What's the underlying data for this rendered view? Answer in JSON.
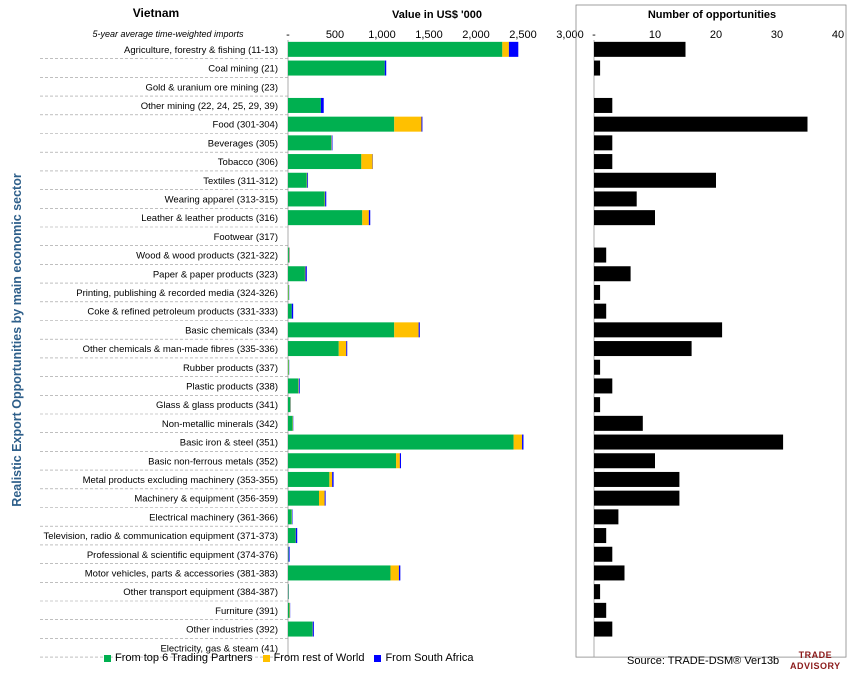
{
  "header": {
    "country": "Vietnam",
    "subtitle": "5-year average time-weighted imports",
    "value_title": "Value in US$ '000",
    "count_title": "Number of opportunities"
  },
  "y_axis_title": "Realistic Export Opportunities by main economic sector",
  "legend": [
    {
      "label": "From top 6 Trading Partners",
      "color": "#00b050"
    },
    {
      "label": "From rest of World",
      "color": "#ffc000"
    },
    {
      "label": "From South Africa",
      "color": "#0000ff"
    }
  ],
  "source": "Source: TRADE-DSM®  Ver13b",
  "logo": {
    "line1": "TRADE",
    "line2": "ADVISORY"
  },
  "chart_data": [
    {
      "type": "bar",
      "orientation": "horizontal",
      "stacked": true,
      "title": "Value in US$ '000",
      "xlim": [
        0,
        3000
      ],
      "xticks": [
        "-",
        "500",
        "1,000",
        "1,500",
        "2,000",
        "2,500",
        "3,000"
      ],
      "categories": [
        "Agriculture, forestry & fishing (11-13)",
        "Coal mining (21)",
        "Gold & uranium ore mining (23)",
        "Other mining (22, 24, 25, 29, 39)",
        "Food (301-304)",
        "Beverages (305)",
        "Tobacco (306)",
        "Textiles (311-312)",
        "Wearing apparel (313-315)",
        "Leather & leather products (316)",
        "Footwear (317)",
        "Wood & wood products (321-322)",
        "Paper & paper products (323)",
        "Printing, publishing & recorded media (324-326)",
        "Coke & refined petroleum products (331-333)",
        "Basic chemicals (334)",
        "Other chemicals & man-made fibres (335-336)",
        "Rubber products (337)",
        "Plastic products (338)",
        "Glass & glass products (341)",
        "Non-metallic minerals (342)",
        "Basic iron & steel (351)",
        "Basic non-ferrous metals (352)",
        "Metal products excluding machinery (353-355)",
        "Machinery & equipment (356-359)",
        "Electrical machinery (361-366)",
        "Television, radio & communication equipment (371-373)",
        "Professional & scientific equipment (374-376)",
        "Motor vehicles, parts & accessories (381-383)",
        "Other transport equipment (384-387)",
        "Furniture (391)",
        "Other industries (392)",
        "Electricity, gas & steam (41)"
      ],
      "series": [
        {
          "name": "From top 6 Trading Partners",
          "color": "#00b050",
          "values": [
            2280,
            1030,
            0,
            350,
            1130,
            460,
            780,
            200,
            390,
            790,
            0,
            10,
            180,
            8,
            40,
            1130,
            540,
            8,
            110,
            25,
            50,
            2400,
            1150,
            440,
            330,
            40,
            80,
            5,
            1090,
            5,
            15,
            260,
            0
          ]
        },
        {
          "name": "From rest of World",
          "color": "#ffc000",
          "values": [
            70,
            0,
            0,
            0,
            290,
            5,
            120,
            5,
            5,
            70,
            0,
            5,
            5,
            3,
            0,
            260,
            80,
            3,
            5,
            3,
            3,
            90,
            40,
            30,
            60,
            3,
            3,
            2,
            90,
            2,
            5,
            3,
            0
          ]
        },
        {
          "name": "From South Africa",
          "color": "#0000ff",
          "values": [
            100,
            15,
            0,
            30,
            10,
            8,
            3,
            8,
            12,
            15,
            0,
            3,
            15,
            2,
            15,
            12,
            10,
            2,
            10,
            2,
            3,
            15,
            12,
            15,
            10,
            5,
            15,
            10,
            15,
            2,
            3,
            12,
            0
          ]
        }
      ]
    },
    {
      "type": "bar",
      "orientation": "horizontal",
      "title": "Number of opportunities",
      "xlim": [
        0,
        40
      ],
      "xticks": [
        "-",
        "10",
        "20",
        "30",
        "40"
      ],
      "series": [
        {
          "name": "",
          "color": "#000000",
          "values": [
            15,
            1,
            0,
            3,
            35,
            3,
            3,
            20,
            7,
            10,
            0,
            2,
            6,
            1,
            2,
            21,
            16,
            1,
            3,
            1,
            8,
            31,
            10,
            14,
            14,
            4,
            2,
            3,
            5,
            1,
            2,
            3,
            0
          ]
        }
      ]
    }
  ]
}
